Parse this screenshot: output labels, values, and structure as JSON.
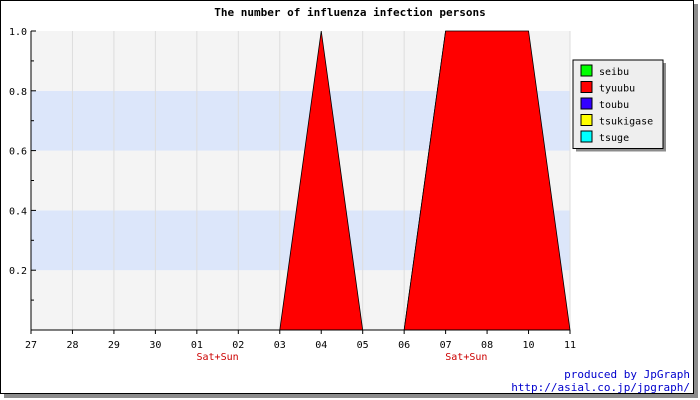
{
  "chart_data": {
    "type": "area",
    "title": "The number of influenza infection persons",
    "xlabel": "",
    "ylabel": "",
    "ylim": [
      0,
      1.0
    ],
    "y_ticks": [
      "0.2",
      "0.4",
      "0.6",
      "0.8",
      "1.0"
    ],
    "categories": [
      "27",
      "28",
      "29",
      "30",
      "01",
      "02",
      "03",
      "04",
      "05",
      "06",
      "07",
      "08",
      "10",
      "11"
    ],
    "weekend_labels": [
      {
        "after_index": 4,
        "text": "Sat+Sun"
      },
      {
        "after_index": 10,
        "text": "Sat+Sun"
      }
    ],
    "series": [
      {
        "name": "seibu",
        "color": "#00ff00",
        "values": [
          0,
          0,
          0,
          0,
          0,
          0,
          0,
          0,
          0,
          0,
          1,
          0,
          0,
          0
        ]
      },
      {
        "name": "tyuubu",
        "color": "#ff0000",
        "values": [
          0,
          0,
          0,
          0,
          0,
          0,
          0,
          1,
          0,
          0,
          1,
          1,
          1,
          0
        ]
      },
      {
        "name": "toubu",
        "color": "#3300ff",
        "values": [
          0,
          0,
          0,
          0,
          0,
          0,
          0,
          0,
          0,
          0,
          0,
          0,
          0,
          0
        ]
      },
      {
        "name": "tsukigase",
        "color": "#ffff00",
        "values": [
          0,
          0,
          0,
          0,
          0,
          0,
          0,
          0,
          0,
          0,
          0,
          0,
          0,
          0
        ]
      },
      {
        "name": "tsuge",
        "color": "#00ffff",
        "values": [
          0,
          0,
          0,
          0,
          0,
          0,
          0,
          0,
          0,
          0,
          0,
          0,
          0,
          0
        ]
      }
    ],
    "grid": true,
    "legend_position": "right"
  },
  "credit": {
    "line1": "produced by JpGraph",
    "line2": "http://asial.co.jp/jpgraph/"
  },
  "colors": {
    "band_light": "#f4f4f4",
    "band_blue": "#dce6fa",
    "weekend_label": "#cc0000",
    "credit": "#0000cc"
  }
}
